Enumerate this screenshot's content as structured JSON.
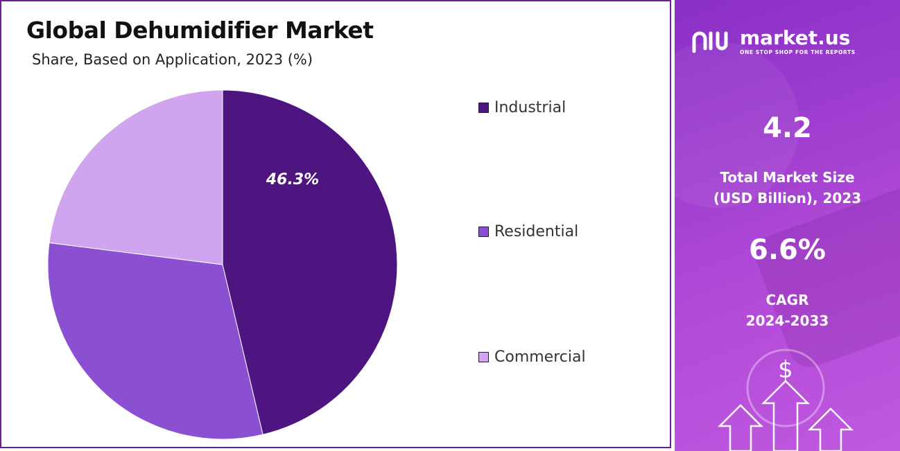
{
  "title": "Global Dehumidifier Market",
  "subtitle": "Share, Based on Application, 2023 (%)",
  "chart_data": {
    "type": "pie",
    "slices": [
      {
        "label": "Industrial",
        "value": 46.3,
        "color": "#4e1480",
        "show_label": true
      },
      {
        "label": "Residential",
        "value": 30.7,
        "color": "#8b4fd1",
        "show_label": false
      },
      {
        "label": "Commercial",
        "value": 23.0,
        "color": "#d0a4ef",
        "show_label": false
      }
    ],
    "legend_position": "right",
    "start_angle_deg": 0,
    "direction": "clockwise"
  },
  "data_labels": {
    "industrial": "46.3%"
  },
  "sidebar": {
    "brand": "market.us",
    "tagline": "ONE STOP SHOP FOR THE REPORTS",
    "market_size_value": "4.2",
    "market_size_label_line1": "Total Market Size",
    "market_size_label_line2": "(USD Billion), 2023",
    "cagr_value": "6.6%",
    "cagr_label_line1": "CAGR",
    "cagr_label_line2": "2024-2033",
    "icons": [
      "logo-mark-icon",
      "dollar-icon",
      "up-arrow-icon"
    ]
  }
}
